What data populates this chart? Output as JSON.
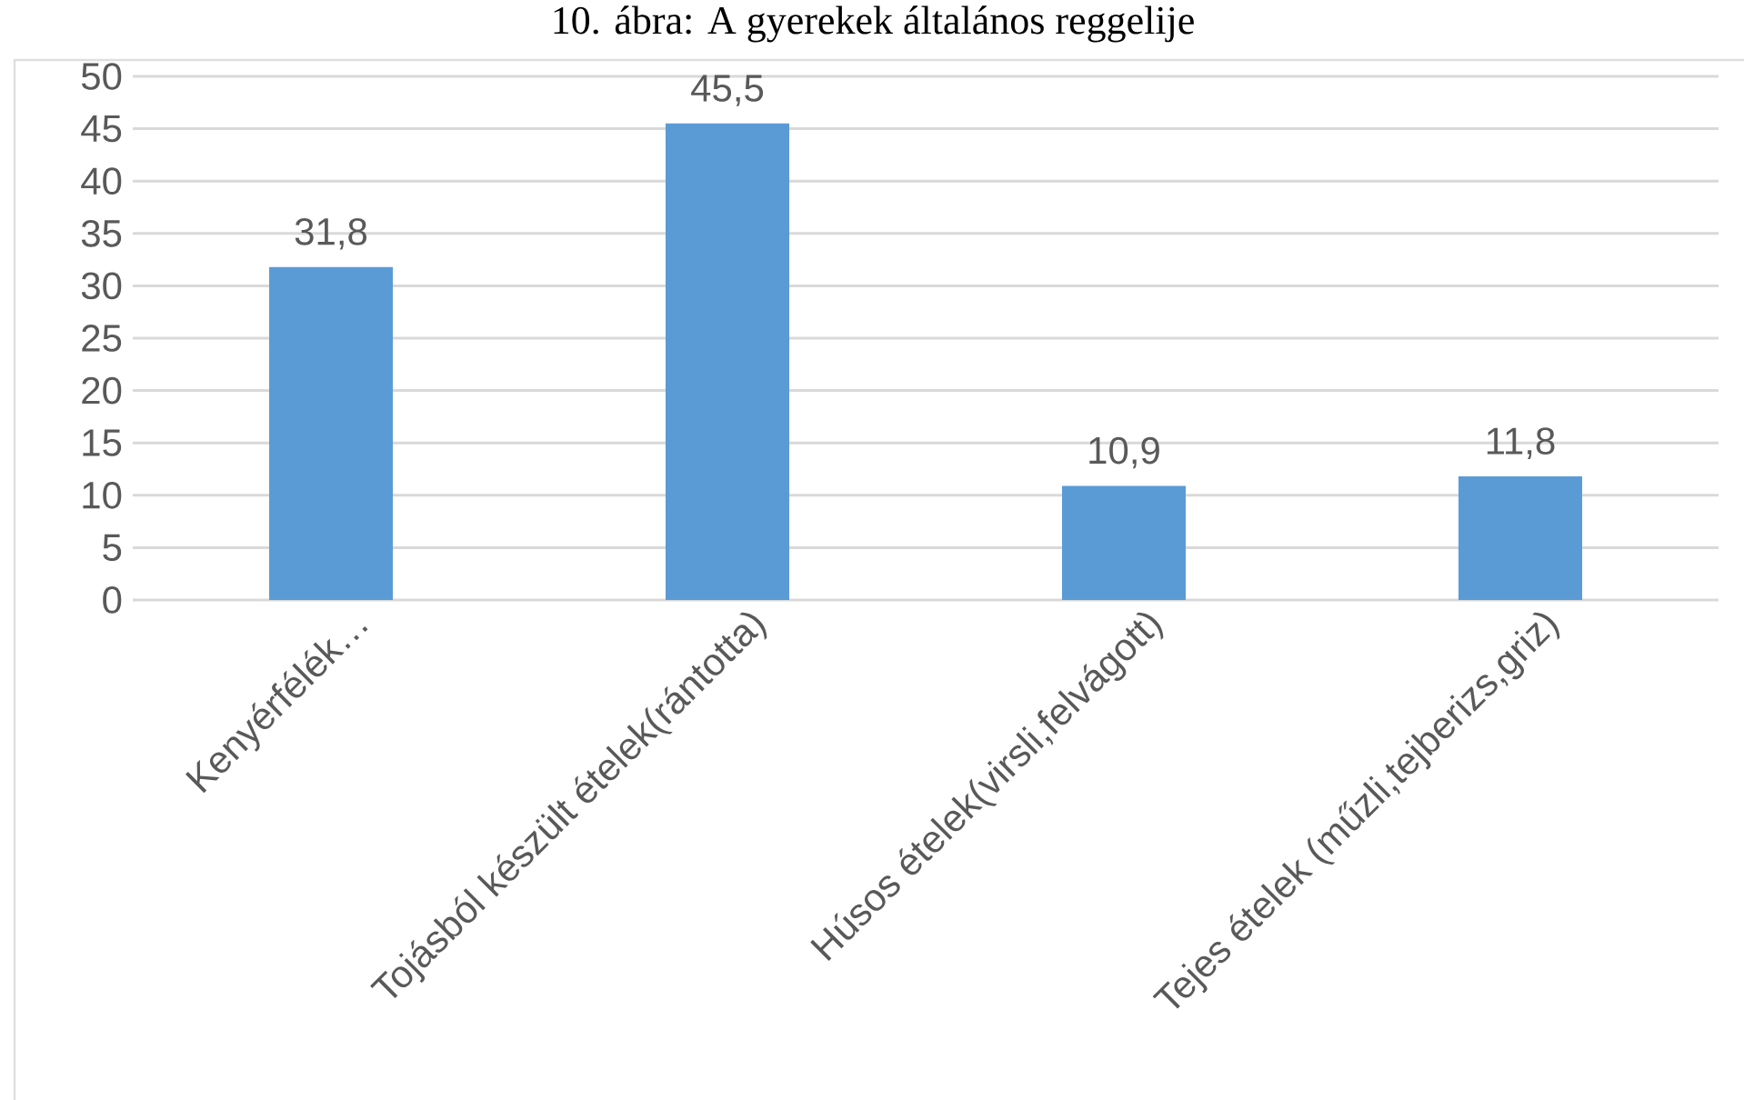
{
  "chart_data": {
    "type": "bar",
    "title": "10. ábra: A gyerekek általános reggelije",
    "categories": [
      "Kenyérfélék…",
      "Tojásból készült ételek(rántotta)",
      "Húsos ételek(virsli,felvágott)",
      "Tejes ételek (műzli,tejberizs,griz)"
    ],
    "values": [
      31.8,
      45.5,
      10.9,
      11.8
    ],
    "value_labels": [
      "31,8",
      "45,5",
      "10,9",
      "11,8"
    ],
    "color": "#5b9bd5",
    "ylim": [
      0,
      50
    ],
    "yticks": [
      0,
      5,
      10,
      15,
      20,
      25,
      30,
      35,
      40,
      45,
      50
    ],
    "grid": "y"
  }
}
